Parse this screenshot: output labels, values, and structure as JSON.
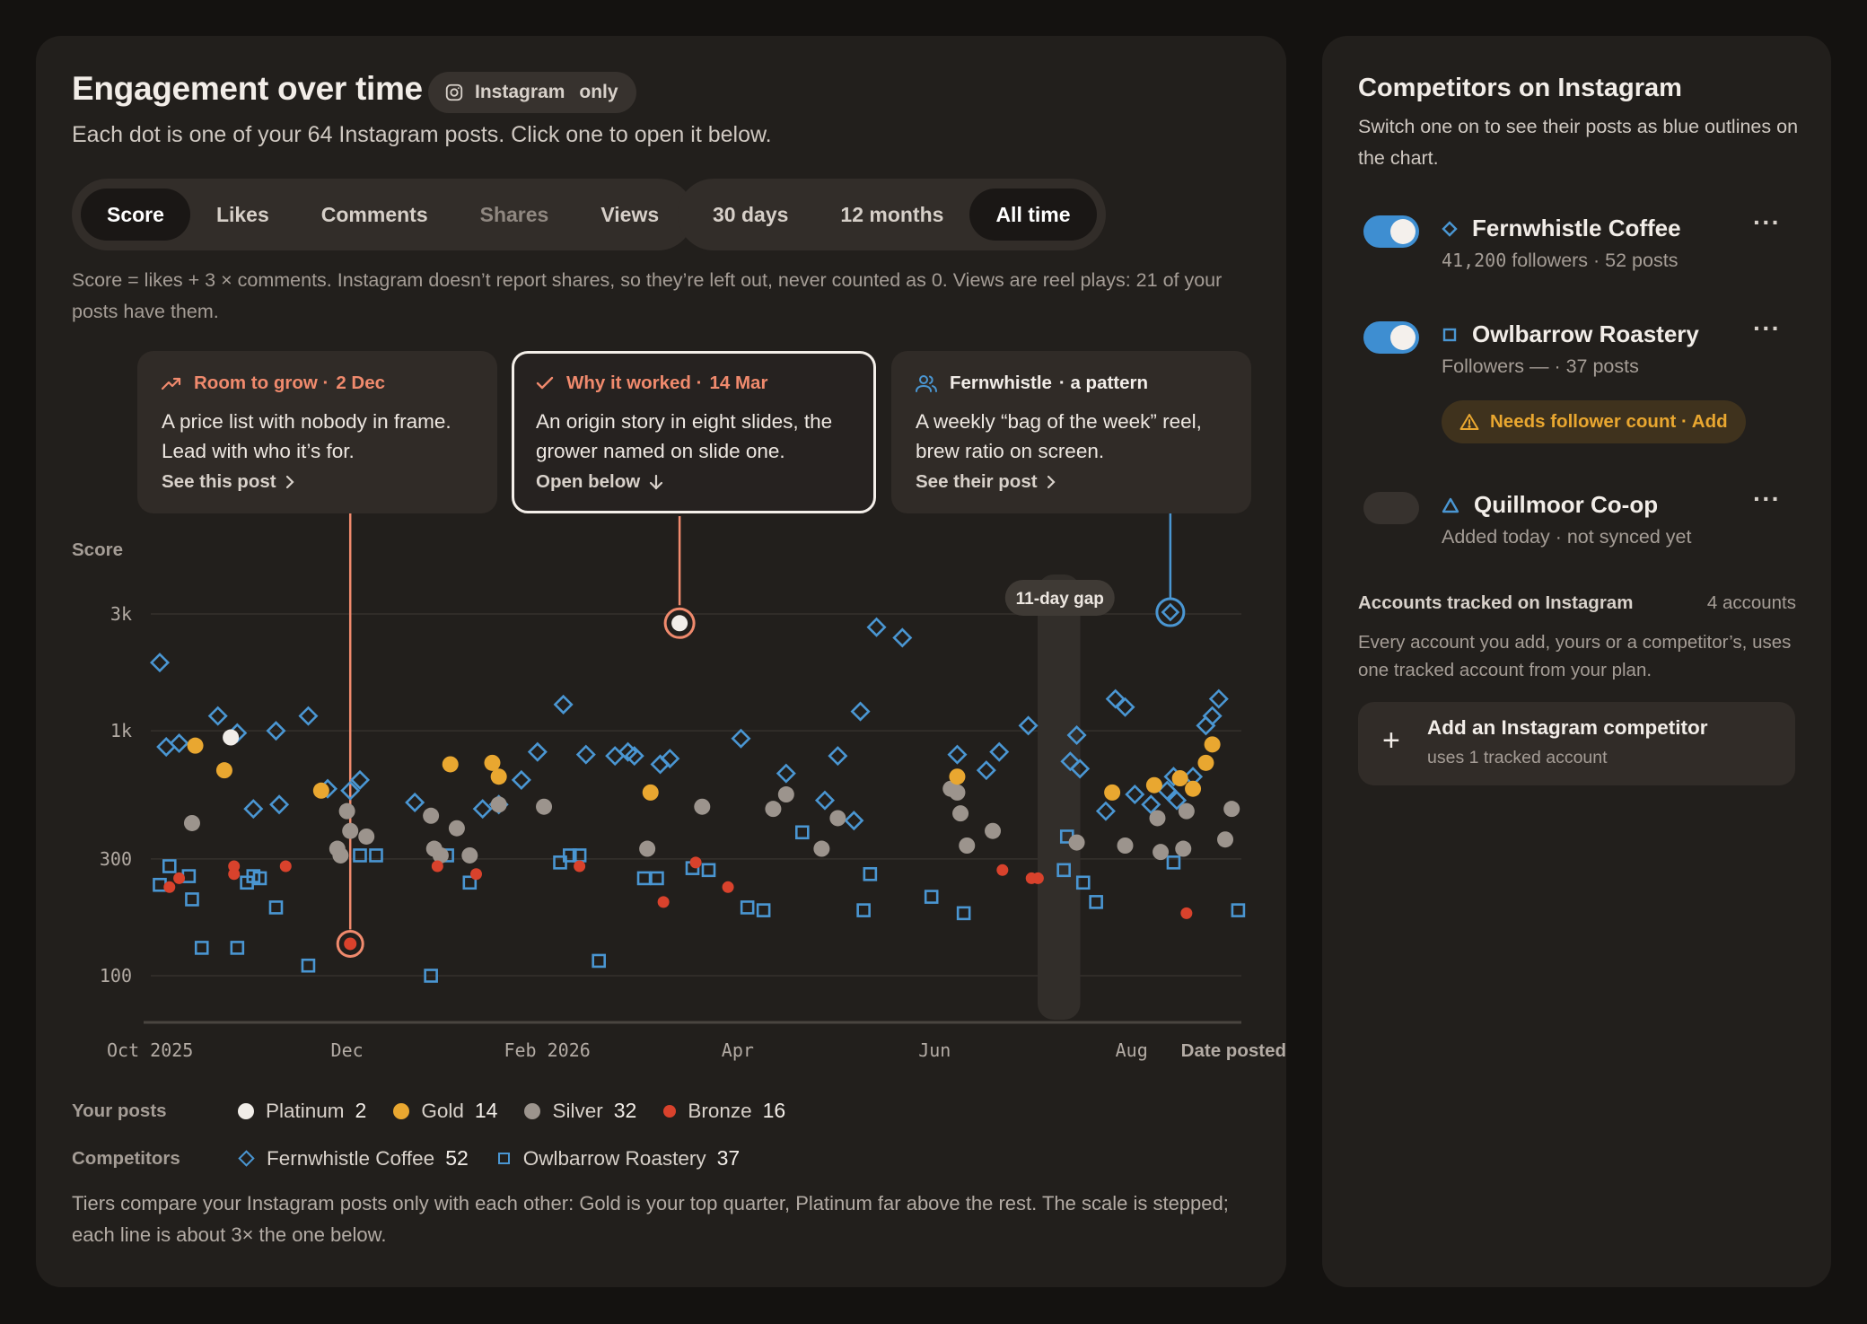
{
  "header": {
    "title": "Engagement over time",
    "chip_label": "Instagram",
    "chip_suffix": "only",
    "subtitle": "Each dot is one of your 64 Instagram posts. Click one to open it below."
  },
  "metric_tabs": [
    {
      "label": "Score",
      "active": true
    },
    {
      "label": "Likes",
      "active": false
    },
    {
      "label": "Comments",
      "active": false
    },
    {
      "label": "Shares",
      "active": false,
      "disabled": true
    },
    {
      "label": "Views",
      "active": false
    }
  ],
  "range_tabs": [
    {
      "label": "30 days",
      "active": false
    },
    {
      "label": "12 months",
      "active": false
    },
    {
      "label": "All time",
      "active": true
    }
  ],
  "score_note": "Score = likes + 3 × comments. Instagram doesn’t report shares, so they’re left out, never counted as 0. Views are reel plays: 21 of your posts have them.",
  "cards": [
    {
      "kind": "Room to grow ·",
      "date": "2 Dec",
      "body": "A price list with nobody in frame. Lead with who it’s for.",
      "link": "See this post",
      "icon": "trend-up-icon",
      "accent": "#f08a6d"
    },
    {
      "kind": "Why it worked ·",
      "date": "14 Mar",
      "body": "An origin story in eight slides, the grower named on slide one.",
      "link": "Open below",
      "icon": "check-icon",
      "accent": "#f08a6d"
    },
    {
      "kind": "Fernwhistle",
      "date": "· a pattern",
      "body": "A weekly “bag of the week” reel, brew ratio on screen.",
      "link": "See their post",
      "icon": "users-icon",
      "accent": "#4a96d2"
    }
  ],
  "chart": {
    "y_title": "Score",
    "y_ticks": [
      "3k",
      "1k",
      "300",
      "100"
    ],
    "x_ticks": [
      "Oct 2025",
      "Dec",
      "Feb 2026",
      "Apr",
      "Jun",
      "Aug"
    ],
    "x_title": "Date posted",
    "gap_label": "11-day gap"
  },
  "chart_data": {
    "type": "scatter",
    "y_scale": "log",
    "ylim": [
      70,
      4000
    ],
    "xlim": [
      "2025-09-29",
      "2026-09-04"
    ],
    "y_ticks": [
      3000,
      1000,
      300,
      100
    ],
    "gap": {
      "start": "2026-07-04",
      "end": "2026-07-15",
      "label": "11-day gap"
    },
    "highlights": [
      {
        "x": "2025-12-02",
        "y": 135,
        "label": "Room to grow · 2 Dec"
      },
      {
        "x": "2026-03-14",
        "y": 2750,
        "label": "Why it worked · 14 Mar"
      },
      {
        "x": "2026-08-13",
        "y": 3050,
        "label": "Fernwhistle · a pattern"
      }
    ],
    "series": [
      {
        "name": "Platinum",
        "color": "#f1ede8",
        "shape": "dot",
        "count": 2,
        "points": [
          [
            "2025-10-26",
            940
          ],
          [
            "2026-03-14",
            2750
          ]
        ]
      },
      {
        "name": "Gold",
        "color": "#e9a730",
        "shape": "dot",
        "count": 14,
        "points": [
          [
            "2025-10-15",
            870
          ],
          [
            "2025-10-24",
            690
          ],
          [
            "2025-11-23",
            570
          ],
          [
            "2026-01-02",
            730
          ],
          [
            "2026-01-15",
            740
          ],
          [
            "2026-01-17",
            650
          ],
          [
            "2026-03-05",
            560
          ],
          [
            "2026-06-08",
            650
          ],
          [
            "2026-07-26",
            560
          ],
          [
            "2026-08-08",
            600
          ],
          [
            "2026-08-16",
            640
          ],
          [
            "2026-08-20",
            580
          ],
          [
            "2026-08-24",
            740
          ],
          [
            "2026-08-26",
            880
          ]
        ]
      },
      {
        "name": "Silver",
        "color": "#9c948d",
        "shape": "dot",
        "count": 32,
        "points": [
          [
            "2025-10-14",
            420
          ],
          [
            "2025-11-28",
            330
          ],
          [
            "2025-11-29",
            310
          ],
          [
            "2025-12-01",
            470
          ],
          [
            "2025-12-02",
            390
          ],
          [
            "2025-12-07",
            370
          ],
          [
            "2025-12-27",
            450
          ],
          [
            "2025-12-28",
            330
          ],
          [
            "2025-12-30",
            310
          ],
          [
            "2026-01-04",
            400
          ],
          [
            "2026-01-08",
            310
          ],
          [
            "2026-01-17",
            500
          ],
          [
            "2026-01-31",
            490
          ],
          [
            "2026-03-04",
            330
          ],
          [
            "2026-03-21",
            490
          ],
          [
            "2026-04-12",
            480
          ],
          [
            "2026-04-16",
            550
          ],
          [
            "2026-04-27",
            330
          ],
          [
            "2026-05-02",
            440
          ],
          [
            "2026-06-06",
            580
          ],
          [
            "2026-06-08",
            560
          ],
          [
            "2026-06-09",
            460
          ],
          [
            "2026-06-11",
            340
          ],
          [
            "2026-06-19",
            390
          ],
          [
            "2026-07-15",
            350
          ],
          [
            "2026-07-30",
            340
          ],
          [
            "2026-08-09",
            440
          ],
          [
            "2026-08-10",
            320
          ],
          [
            "2026-08-17",
            330
          ],
          [
            "2026-08-18",
            470
          ],
          [
            "2026-08-30",
            360
          ],
          [
            "2026-09-01",
            480
          ]
        ]
      },
      {
        "name": "Bronze",
        "color": "#d9422c",
        "shape": "dot",
        "count": 16,
        "points": [
          [
            "2025-10-07",
            230
          ],
          [
            "2025-10-10",
            250
          ],
          [
            "2025-10-27",
            260
          ],
          [
            "2025-10-27",
            280
          ],
          [
            "2025-11-12",
            280
          ],
          [
            "2025-12-02",
            135
          ],
          [
            "2025-12-29",
            280
          ],
          [
            "2026-01-10",
            260
          ],
          [
            "2026-02-11",
            280
          ],
          [
            "2026-03-09",
            200
          ],
          [
            "2026-03-19",
            290
          ],
          [
            "2026-03-29",
            230
          ],
          [
            "2026-06-22",
            270
          ],
          [
            "2026-07-01",
            250
          ],
          [
            "2026-07-03",
            250
          ],
          [
            "2026-08-18",
            180
          ]
        ]
      },
      {
        "name": "Fernwhistle Coffee",
        "color": "#4a96d2",
        "shape": "diamond",
        "count": 52,
        "points": [
          [
            "2025-10-04",
            1900
          ],
          [
            "2025-10-06",
            860
          ],
          [
            "2025-10-10",
            890
          ],
          [
            "2025-10-22",
            1150
          ],
          [
            "2025-10-28",
            980
          ],
          [
            "2025-11-02",
            480
          ],
          [
            "2025-11-09",
            1000
          ],
          [
            "2025-11-10",
            500
          ],
          [
            "2025-11-19",
            1150
          ],
          [
            "2025-11-25",
            580
          ],
          [
            "2025-12-02",
            570
          ],
          [
            "2025-12-05",
            630
          ],
          [
            "2025-12-22",
            510
          ],
          [
            "2026-01-12",
            480
          ],
          [
            "2026-01-17",
            500
          ],
          [
            "2026-01-24",
            630
          ],
          [
            "2026-01-29",
            820
          ],
          [
            "2026-02-06",
            1280
          ],
          [
            "2026-02-13",
            800
          ],
          [
            "2026-02-22",
            790
          ],
          [
            "2026-02-26",
            820
          ],
          [
            "2026-02-28",
            790
          ],
          [
            "2026-03-08",
            730
          ],
          [
            "2026-03-11",
            770
          ],
          [
            "2026-04-02",
            930
          ],
          [
            "2026-04-16",
            670
          ],
          [
            "2026-04-28",
            520
          ],
          [
            "2026-05-02",
            790
          ],
          [
            "2026-05-07",
            430
          ],
          [
            "2026-05-09",
            1200
          ],
          [
            "2026-05-14",
            2650
          ],
          [
            "2026-05-22",
            2400
          ],
          [
            "2026-06-08",
            800
          ],
          [
            "2026-06-17",
            690
          ],
          [
            "2026-06-21",
            820
          ],
          [
            "2026-06-30",
            1050
          ],
          [
            "2026-07-13",
            750
          ],
          [
            "2026-07-15",
            960
          ],
          [
            "2026-07-16",
            700
          ],
          [
            "2026-07-24",
            470
          ],
          [
            "2026-07-27",
            1350
          ],
          [
            "2026-07-30",
            1250
          ],
          [
            "2026-08-02",
            550
          ],
          [
            "2026-08-07",
            500
          ],
          [
            "2026-08-12",
            570
          ],
          [
            "2026-08-14",
            650
          ],
          [
            "2026-08-15",
            520
          ],
          [
            "2026-08-20",
            650
          ],
          [
            "2026-08-24",
            1050
          ],
          [
            "2026-08-26",
            1150
          ],
          [
            "2026-08-28",
            1350
          ],
          [
            "2026-08-13",
            3050
          ]
        ]
      },
      {
        "name": "Owlbarrow Roastery",
        "color": "#4a96d2",
        "shape": "square",
        "count": 37,
        "points": [
          [
            "2025-10-04",
            235
          ],
          [
            "2025-10-07",
            280
          ],
          [
            "2025-10-13",
            255
          ],
          [
            "2025-10-14",
            205
          ],
          [
            "2025-10-17",
            130
          ],
          [
            "2025-10-28",
            130
          ],
          [
            "2025-10-31",
            240
          ],
          [
            "2025-11-02",
            255
          ],
          [
            "2025-11-04",
            250
          ],
          [
            "2025-11-09",
            190
          ],
          [
            "2025-11-19",
            110
          ],
          [
            "2025-12-05",
            310
          ],
          [
            "2025-12-10",
            310
          ],
          [
            "2025-12-27",
            100
          ],
          [
            "2026-01-01",
            310
          ],
          [
            "2026-01-08",
            240
          ],
          [
            "2026-02-05",
            290
          ],
          [
            "2026-02-08",
            310
          ],
          [
            "2026-02-11",
            310
          ],
          [
            "2026-02-17",
            115
          ],
          [
            "2026-03-03",
            250
          ],
          [
            "2026-03-07",
            250
          ],
          [
            "2026-03-18",
            275
          ],
          [
            "2026-03-23",
            270
          ],
          [
            "2026-04-04",
            190
          ],
          [
            "2026-04-09",
            185
          ],
          [
            "2026-04-21",
            385
          ],
          [
            "2026-05-10",
            185
          ],
          [
            "2026-05-12",
            260
          ],
          [
            "2026-05-31",
            210
          ],
          [
            "2026-06-10",
            180
          ],
          [
            "2026-07-11",
            270
          ],
          [
            "2026-07-12",
            370
          ],
          [
            "2026-07-17",
            240
          ],
          [
            "2026-07-21",
            200
          ],
          [
            "2026-08-14",
            290
          ],
          [
            "2026-09-03",
            185
          ]
        ]
      }
    ]
  },
  "legend": {
    "yours_label": "Your posts",
    "comp_label": "Competitors",
    "tiers": [
      {
        "name": "Platinum",
        "count": "2",
        "color": "#f1ede8"
      },
      {
        "name": "Gold",
        "count": "14",
        "color": "#e9a730"
      },
      {
        "name": "Silver",
        "count": "32",
        "color": "#9c948d"
      },
      {
        "name": "Bronze",
        "count": "16",
        "color": "#d9422c"
      }
    ],
    "competitors": [
      {
        "name": "Fernwhistle Coffee",
        "count": "52"
      },
      {
        "name": "Owlbarrow Roastery",
        "count": "37"
      }
    ]
  },
  "tier_note": "Tiers compare your Instagram posts only with each other: Gold is your top quarter, Platinum far above the rest. The scale is stepped; each line is about 3× the one below.",
  "sidebar": {
    "title": "Competitors on Instagram",
    "subtitle": "Switch one on to see their posts as blue outlines on the chart.",
    "competitors": [
      {
        "name": "Fernwhistle Coffee",
        "meta_num": "41,200",
        "meta_rest": " followers · 52 posts",
        "enabled": true,
        "shape": "diamond"
      },
      {
        "name": "Owlbarrow Roastery",
        "meta": "Followers — · 37 posts",
        "enabled": true,
        "shape": "square",
        "warning": "Needs follower count · Add"
      },
      {
        "name": "Quillmoor Co-op",
        "meta": "Added today · not synced yet",
        "enabled": false,
        "shape": "triangle"
      }
    ],
    "more_label": "···",
    "tracked_label": "Accounts tracked on Instagram",
    "tracked_count": "4 accounts",
    "tracked_note": "Every account you add, yours or a competitor’s, uses one tracked account from your plan.",
    "add_button": {
      "title": "Add an Instagram competitor",
      "subtitle": "uses 1 tracked account"
    }
  }
}
